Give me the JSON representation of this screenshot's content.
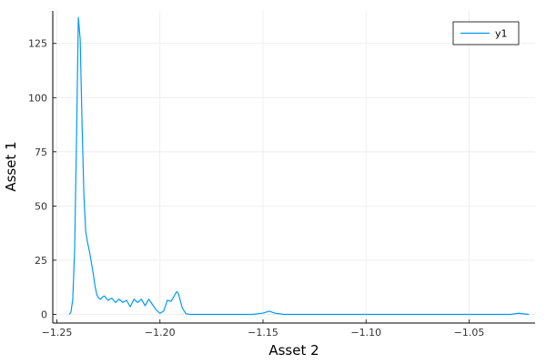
{
  "chart_data": {
    "type": "line",
    "title": "",
    "xlabel": "Asset 2",
    "ylabel": "Asset 1",
    "xlim": [
      -1.252,
      -1.018
    ],
    "ylim": [
      -4,
      140
    ],
    "x_ticks": [
      -1.25,
      -1.2,
      -1.15,
      -1.1,
      -1.05
    ],
    "x_tick_labels": [
      "−1.25",
      "−1.20",
      "−1.15",
      "−1.10",
      "−1.05"
    ],
    "y_ticks": [
      0,
      25,
      50,
      75,
      100,
      125
    ],
    "y_tick_labels": [
      "0",
      "25",
      "50",
      "75",
      "100",
      "125"
    ],
    "grid": true,
    "legend_position": "top-right",
    "colors": {
      "series": "#009af9",
      "axis": "#000000",
      "grid": "#ebebeb"
    },
    "series": [
      {
        "name": "y1",
        "x": [
          -1.2441,
          -1.2432,
          -1.2423,
          -1.2414,
          -1.2405,
          -1.2396,
          -1.2387,
          -1.2378,
          -1.2369,
          -1.236,
          -1.2351,
          -1.2342,
          -1.2333,
          -1.2324,
          -1.2315,
          -1.2306,
          -1.2297,
          -1.2288,
          -1.2279,
          -1.227,
          -1.2252,
          -1.2234,
          -1.2216,
          -1.2198,
          -1.218,
          -1.2162,
          -1.2144,
          -1.2126,
          -1.2108,
          -1.209,
          -1.2072,
          -1.2054,
          -1.2036,
          -1.2018,
          -1.2,
          -1.1982,
          -1.1964,
          -1.1946,
          -1.1928,
          -1.1919,
          -1.191,
          -1.1892,
          -1.1874,
          -1.1856,
          -1.182,
          -1.17,
          -1.155,
          -1.15,
          -1.147,
          -1.144,
          -1.14,
          -1.12,
          -1.1,
          -1.08,
          -1.06,
          -1.04,
          -1.03,
          -1.026,
          -1.024,
          -1.021
        ],
        "y": [
          0,
          1,
          7,
          30,
          80,
          137,
          127,
          88,
          55,
          38,
          33,
          29,
          24,
          19,
          13,
          9,
          7.5,
          7,
          8,
          8.5,
          6.5,
          7.5,
          5.5,
          7,
          5.5,
          6.5,
          3.5,
          7,
          5.5,
          7,
          4,
          7,
          4.5,
          2,
          0.5,
          1.5,
          6.5,
          6,
          9,
          10.5,
          9.5,
          3,
          0.3,
          0,
          0,
          0,
          0,
          0.6,
          1.5,
          0.5,
          0,
          0,
          0,
          0,
          0,
          0,
          0,
          0.5,
          0.3,
          0
        ]
      }
    ]
  }
}
